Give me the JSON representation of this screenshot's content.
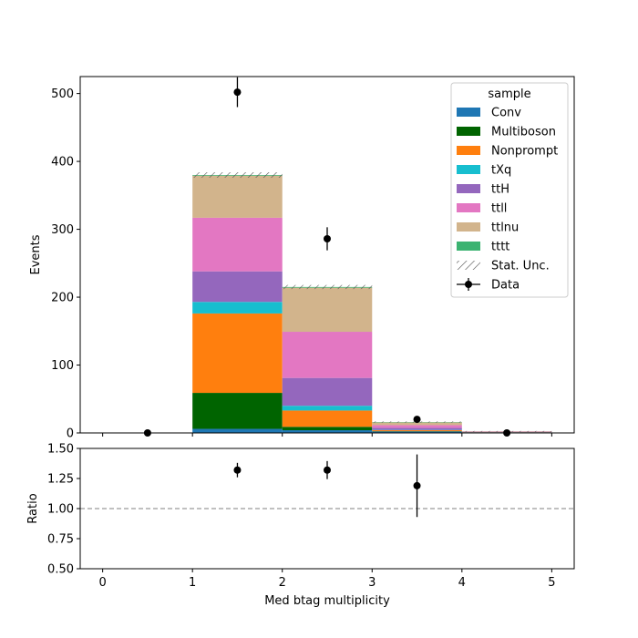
{
  "chart_data": [
    {
      "type": "bar",
      "stacked": true,
      "ylabel": "Events",
      "ylim": [
        0,
        525
      ],
      "yticks": [
        0,
        100,
        200,
        300,
        400,
        500
      ],
      "bin_edges": [
        0,
        1,
        2,
        3,
        4,
        5
      ],
      "series": [
        {
          "name": "Conv",
          "color": "#1f77b4",
          "values": [
            0,
            6,
            4,
            2,
            1
          ]
        },
        {
          "name": "Multiboson",
          "color": "#006400",
          "values": [
            0,
            53,
            5,
            0.5,
            0
          ]
        },
        {
          "name": "Nonprompt",
          "color": "#ff7f0e",
          "values": [
            0,
            117,
            24,
            1.5,
            0.2
          ]
        },
        {
          "name": "tXq",
          "color": "#17becf",
          "values": [
            0,
            17,
            7,
            0.5,
            0
          ]
        },
        {
          "name": "ttH",
          "color": "#9467bd",
          "values": [
            0,
            45,
            41,
            3,
            0.3
          ]
        },
        {
          "name": "ttll",
          "color": "#e377c2",
          "values": [
            0,
            79,
            68,
            4,
            0.5
          ]
        },
        {
          "name": "ttlnu",
          "color": "#d2b48c",
          "values": [
            0,
            62,
            65,
            4,
            0.5
          ]
        },
        {
          "name": "tttt",
          "color": "#3cb371",
          "values": [
            0,
            1,
            1,
            0.5,
            0.1
          ]
        }
      ],
      "stat_unc_label": "Stat. Unc.",
      "stat_unc": [
        0,
        4,
        3,
        1,
        0.3
      ],
      "data": {
        "name": "Data",
        "x": [
          0.5,
          1.5,
          2.5,
          3.5,
          4.5
        ],
        "y": [
          0,
          502,
          286,
          20,
          0
        ],
        "yerr": [
          0,
          22,
          17,
          4.5,
          0
        ]
      },
      "legend": {
        "title": "sample",
        "placement": "top-right"
      }
    },
    {
      "type": "scatter",
      "xlabel": "Med btag multiplicity",
      "ylabel": "Ratio",
      "xlim": [
        -0.25,
        5.25
      ],
      "xticks": [
        0,
        1,
        2,
        3,
        4,
        5
      ],
      "ylim": [
        0.5,
        1.5
      ],
      "yticks": [
        "0.50",
        "0.75",
        "1.00",
        "1.25",
        "1.50"
      ],
      "reference_line": 1.0,
      "x": [
        1.5,
        2.5,
        3.5
      ],
      "y": [
        1.32,
        1.32,
        1.19
      ],
      "yerr": [
        0.06,
        0.075,
        0.26
      ]
    }
  ]
}
